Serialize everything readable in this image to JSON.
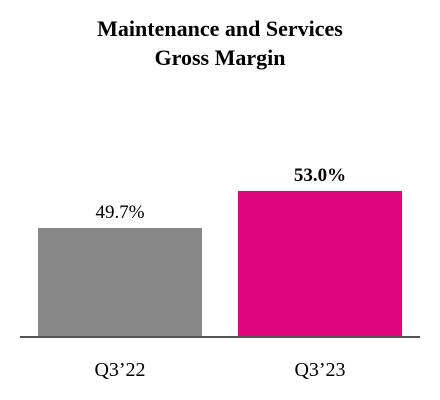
{
  "chart_data": {
    "type": "bar",
    "title_lines": [
      "Maintenance and Services",
      "Gross Margin"
    ],
    "categories": [
      "Q3’22",
      "Q3’23"
    ],
    "values": [
      49.7,
      53.0
    ],
    "data_labels": [
      "49.7%",
      "53.0%"
    ],
    "bold_labels": [
      false,
      true
    ],
    "colors": [
      "#878787",
      "#e0067f"
    ],
    "axis_color": "#555555",
    "ylim": [
      40,
      55
    ],
    "grid": false,
    "legend": "none"
  }
}
